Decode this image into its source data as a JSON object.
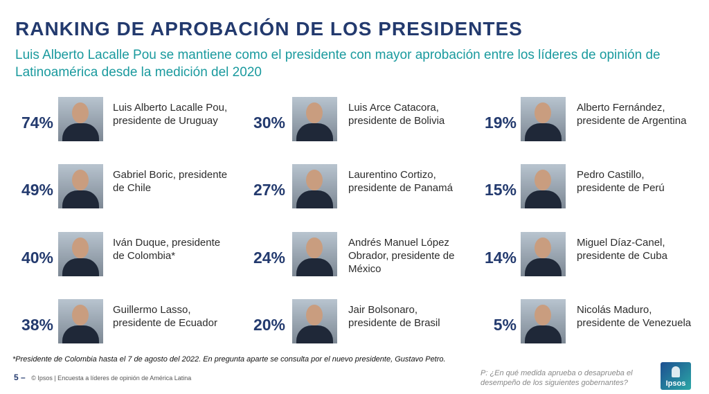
{
  "title": "RANKING DE APROBACIÓN DE LOS PRESIDENTES",
  "subtitle": "Luis Alberto Lacalle Pou se mantiene como el presidente con mayor aprobación entre los líderes de opinión de Latinoamérica desde la medición del 2020",
  "columns": [
    [
      {
        "pct": "74%",
        "name": "Luis Alberto Lacalle Pou, presidente de Uruguay"
      },
      {
        "pct": "49%",
        "name": "Gabriel Boric, presidente de Chile"
      },
      {
        "pct": "40%",
        "name": "Iván Duque, presidente de Colombia*"
      },
      {
        "pct": "38%",
        "name": "Guillermo Lasso, presidente de Ecuador"
      }
    ],
    [
      {
        "pct": "30%",
        "name": "Luis Arce Catacora, presidente de Bolivia"
      },
      {
        "pct": "27%",
        "name": "Laurentino Cortizo, presidente de Panamá"
      },
      {
        "pct": "24%",
        "name": "Andrés Manuel López Obrador, presidente de México"
      },
      {
        "pct": "20%",
        "name": "Jair Bolsonaro, presidente de Brasil"
      }
    ],
    [
      {
        "pct": "19%",
        "name": "Alberto Fernández, presidente de Argentina"
      },
      {
        "pct": "15%",
        "name": "Pedro Castillo, presidente de Perú"
      },
      {
        "pct": "14%",
        "name": "Miguel Díaz-Canel, presidente de Cuba"
      },
      {
        "pct": "5%",
        "name": "Nicolás Maduro, presidente de Venezuela"
      }
    ]
  ],
  "footnote": "*Presidente de Colombia hasta el 7 de agosto del 2022. En pregunta aparte se consulta por el nuevo presidente, Gustavo Petro.",
  "footer": {
    "page": "5 –",
    "text": "© Ipsos | Encuesta a líderes de opinión de América Latina"
  },
  "question": "P: ¿En qué medida aprueba o desaprueba el desempeño de los siguientes gobernantes?",
  "logo": "Ipsos",
  "colors": {
    "title": "#233a6e",
    "subtitle": "#1a9a9e"
  }
}
